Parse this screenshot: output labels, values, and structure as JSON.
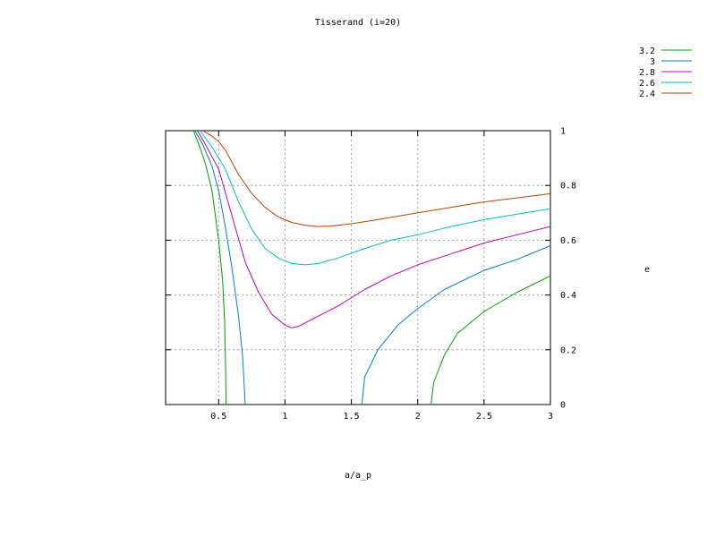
{
  "chart_data": {
    "type": "line",
    "title": "Tisserand (i=20)",
    "xlabel": "a/a_p",
    "ylabel": "e",
    "xlim": [
      0.1,
      3
    ],
    "ylim": [
      0,
      1
    ],
    "x_ticks": [
      0.5,
      1,
      1.5,
      2,
      2.5,
      3
    ],
    "x_tick_labels": [
      "0.5",
      "1",
      "1.5",
      "2",
      "2.5",
      "3"
    ],
    "y_ticks": [
      0,
      0.2,
      0.4,
      0.6,
      0.8,
      1
    ],
    "y_tick_labels": [
      "0",
      "0.2",
      "0.4",
      "0.6",
      "0.8",
      "1"
    ],
    "y_axis_side": "right",
    "grid": true,
    "legend_position": "top-right",
    "series": [
      {
        "name": "3.2",
        "color": "#00a000",
        "segments": [
          [
            [
              0.31,
              1.0
            ],
            [
              0.35,
              0.95
            ],
            [
              0.4,
              0.88
            ],
            [
              0.45,
              0.78
            ],
            [
              0.5,
              0.6
            ],
            [
              0.53,
              0.45
            ],
            [
              0.545,
              0.3
            ],
            [
              0.552,
              0.15
            ],
            [
              0.556,
              0.0
            ]
          ],
          [
            [
              2.1,
              0.0
            ],
            [
              2.12,
              0.08
            ],
            [
              2.2,
              0.18
            ],
            [
              2.3,
              0.26
            ],
            [
              2.5,
              0.34
            ],
            [
              2.75,
              0.41
            ],
            [
              3.0,
              0.47
            ]
          ]
        ]
      },
      {
        "name": "3",
        "color": "#0080c0",
        "segments": [
          [
            [
              0.32,
              1.0
            ],
            [
              0.38,
              0.95
            ],
            [
              0.45,
              0.87
            ],
            [
              0.5,
              0.78
            ],
            [
              0.55,
              0.65
            ],
            [
              0.6,
              0.5
            ],
            [
              0.65,
              0.32
            ],
            [
              0.68,
              0.18
            ],
            [
              0.7,
              0.0
            ]
          ],
          [
            [
              1.58,
              0.0
            ],
            [
              1.6,
              0.1
            ],
            [
              1.7,
              0.2
            ],
            [
              1.85,
              0.29
            ],
            [
              2.0,
              0.35
            ],
            [
              2.2,
              0.42
            ],
            [
              2.5,
              0.49
            ],
            [
              2.75,
              0.53
            ],
            [
              3.0,
              0.58
            ]
          ]
        ]
      },
      {
        "name": "2.8",
        "color": "#c000c0",
        "segments": [
          [
            [
              0.34,
              1.0
            ],
            [
              0.4,
              0.95
            ],
            [
              0.5,
              0.86
            ],
            [
              0.6,
              0.69
            ],
            [
              0.7,
              0.52
            ],
            [
              0.8,
              0.41
            ],
            [
              0.9,
              0.33
            ],
            [
              1.0,
              0.29
            ],
            [
              1.05,
              0.28
            ],
            [
              1.1,
              0.285
            ],
            [
              1.2,
              0.31
            ],
            [
              1.4,
              0.36
            ],
            [
              1.6,
              0.42
            ],
            [
              1.8,
              0.47
            ],
            [
              2.0,
              0.51
            ],
            [
              2.25,
              0.55
            ],
            [
              2.5,
              0.59
            ],
            [
              2.75,
              0.62
            ],
            [
              3.0,
              0.65
            ]
          ]
        ]
      },
      {
        "name": "2.6",
        "color": "#00c0c0",
        "segments": [
          [
            [
              0.36,
              1.0
            ],
            [
              0.45,
              0.94
            ],
            [
              0.55,
              0.86
            ],
            [
              0.65,
              0.74
            ],
            [
              0.75,
              0.64
            ],
            [
              0.85,
              0.57
            ],
            [
              0.95,
              0.535
            ],
            [
              1.05,
              0.515
            ],
            [
              1.15,
              0.51
            ],
            [
              1.25,
              0.515
            ],
            [
              1.4,
              0.535
            ],
            [
              1.6,
              0.57
            ],
            [
              1.8,
              0.6
            ],
            [
              2.0,
              0.62
            ],
            [
              2.25,
              0.65
            ],
            [
              2.5,
              0.675
            ],
            [
              2.75,
              0.695
            ],
            [
              3.0,
              0.715
            ]
          ]
        ]
      },
      {
        "name": "2.4",
        "color": "#c04000",
        "segments": [
          [
            [
              0.38,
              1.0
            ],
            [
              0.45,
              0.98
            ],
            [
              0.5,
              0.96
            ],
            [
              0.55,
              0.93
            ],
            [
              0.65,
              0.84
            ],
            [
              0.75,
              0.77
            ],
            [
              0.85,
              0.72
            ],
            [
              0.95,
              0.685
            ],
            [
              1.05,
              0.665
            ],
            [
              1.15,
              0.655
            ],
            [
              1.25,
              0.65
            ],
            [
              1.35,
              0.652
            ],
            [
              1.5,
              0.66
            ],
            [
              1.7,
              0.675
            ],
            [
              2.0,
              0.7
            ],
            [
              2.25,
              0.72
            ],
            [
              2.5,
              0.74
            ],
            [
              2.75,
              0.755
            ],
            [
              3.0,
              0.77
            ]
          ]
        ]
      }
    ]
  }
}
